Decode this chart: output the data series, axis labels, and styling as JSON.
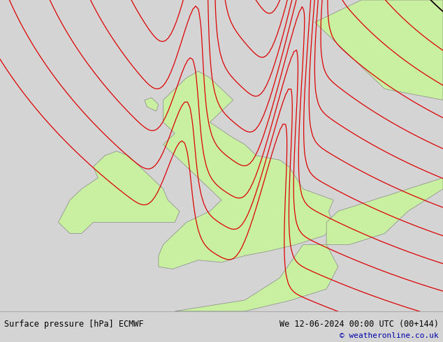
{
  "title_bottom_left": "Surface pressure [hPa] ECMWF",
  "title_bottom_right": "We 12-06-2024 00:00 UTC (00+144)",
  "copyright": "© weatheronline.co.uk",
  "bg_color": "#d4d4d4",
  "land_color": "#c8f0a0",
  "border_color": "#888888",
  "sea_color": "#d4d4d4",
  "contour_color_red": "#dd0000",
  "contour_color_blue": "#0000cc",
  "contour_color_black": "#000000",
  "bottom_bar_color": "#e0e0e0",
  "bottom_text_color": "#000000",
  "copyright_color": "#0000aa",
  "lon_min": -12.5,
  "lon_max": 6.5,
  "lat_min": 48.0,
  "lat_max": 62.0,
  "figwidth": 6.34,
  "figheight": 4.9,
  "dpi": 100
}
